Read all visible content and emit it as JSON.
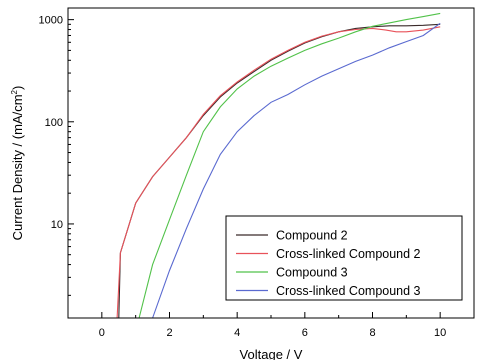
{
  "chart_data": {
    "type": "line",
    "title": "",
    "xlabel": "Voltage / V",
    "ylabel": "Current Density / (mA/cm",
    "ylabel_sup": "2",
    "ylabel_close": ")",
    "xlim": [
      -1,
      11
    ],
    "ylim": [
      1.2,
      1300
    ],
    "yscale": "log",
    "x_ticks": [
      0,
      2,
      4,
      6,
      8,
      10
    ],
    "x_tick_labels": [
      "0",
      "2",
      "4",
      "6",
      "8",
      "10"
    ],
    "y_ticks": [
      10,
      100,
      1000
    ],
    "y_tick_labels": [
      "10",
      "100",
      "1000"
    ],
    "grid": false,
    "legend_position": "bottom-right",
    "series": [
      {
        "name": "Compound 2",
        "color": "#3a2a2a",
        "points": [
          [
            0.5,
            1.2
          ],
          [
            0.55,
            5.2
          ],
          [
            1,
            16
          ],
          [
            1.5,
            29
          ],
          [
            2,
            45
          ],
          [
            2.5,
            70
          ],
          [
            3,
            115
          ],
          [
            3.5,
            175
          ],
          [
            4,
            240
          ],
          [
            4.5,
            310
          ],
          [
            5,
            400
          ],
          [
            5.5,
            490
          ],
          [
            6,
            590
          ],
          [
            6.5,
            680
          ],
          [
            7,
            760
          ],
          [
            7.5,
            820
          ],
          [
            8,
            850
          ],
          [
            8.5,
            870
          ],
          [
            9,
            870
          ],
          [
            9.5,
            880
          ],
          [
            10,
            900
          ]
        ]
      },
      {
        "name": "Cross-linked Compound 2",
        "color": "#e8525a",
        "points": [
          [
            0.45,
            1.2
          ],
          [
            0.55,
            5.2
          ],
          [
            1,
            16
          ],
          [
            1.5,
            29
          ],
          [
            2,
            45
          ],
          [
            2.5,
            70
          ],
          [
            3,
            118
          ],
          [
            3.5,
            180
          ],
          [
            4,
            245
          ],
          [
            4.5,
            320
          ],
          [
            5,
            410
          ],
          [
            5.5,
            500
          ],
          [
            6,
            600
          ],
          [
            6.5,
            690
          ],
          [
            7,
            760
          ],
          [
            7.5,
            800
          ],
          [
            8,
            820
          ],
          [
            8.4,
            790
          ],
          [
            8.7,
            760
          ],
          [
            9,
            760
          ],
          [
            9.5,
            790
          ],
          [
            10,
            850
          ]
        ]
      },
      {
        "name": "Compound 3",
        "color": "#52c24a",
        "points": [
          [
            1.1,
            1.2
          ],
          [
            1.5,
            4
          ],
          [
            2,
            11
          ],
          [
            2.5,
            30
          ],
          [
            3,
            80
          ],
          [
            3.5,
            140
          ],
          [
            4,
            210
          ],
          [
            4.5,
            280
          ],
          [
            5,
            350
          ],
          [
            5.5,
            420
          ],
          [
            6,
            500
          ],
          [
            6.5,
            580
          ],
          [
            7,
            660
          ],
          [
            7.5,
            760
          ],
          [
            8,
            860
          ],
          [
            8.5,
            930
          ],
          [
            9,
            1000
          ],
          [
            9.5,
            1070
          ],
          [
            10,
            1150
          ]
        ]
      },
      {
        "name": "Cross-linked Compound 3",
        "color": "#5a6ad0",
        "points": [
          [
            1.5,
            1.2
          ],
          [
            2,
            3.5
          ],
          [
            2.5,
            9
          ],
          [
            3,
            22
          ],
          [
            3.5,
            48
          ],
          [
            4,
            80
          ],
          [
            4.5,
            115
          ],
          [
            5,
            155
          ],
          [
            5.5,
            185
          ],
          [
            6,
            230
          ],
          [
            6.5,
            280
          ],
          [
            7,
            330
          ],
          [
            7.5,
            390
          ],
          [
            8,
            450
          ],
          [
            8.5,
            530
          ],
          [
            9,
            610
          ],
          [
            9.5,
            700
          ],
          [
            10,
            920
          ]
        ]
      }
    ]
  }
}
